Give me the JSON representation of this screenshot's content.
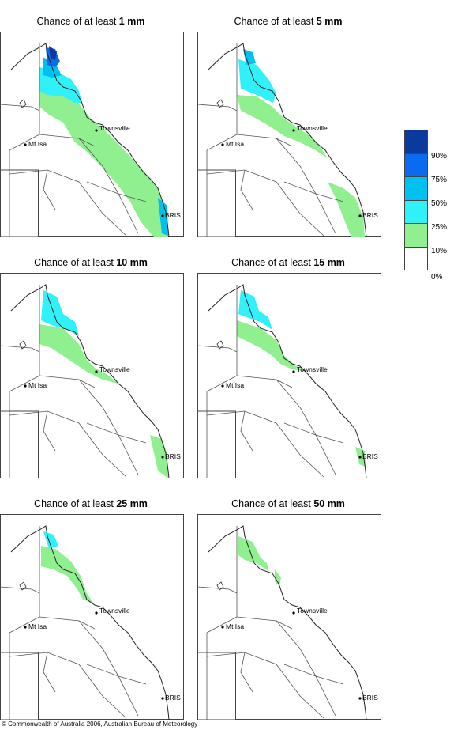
{
  "panels": [
    {
      "prefix": "Chance of at least ",
      "amount": "1 mm"
    },
    {
      "prefix": "Chance of at least ",
      "amount": "5 mm"
    },
    {
      "prefix": "Chance of at least ",
      "amount": "10 mm"
    },
    {
      "prefix": "Chance of at least ",
      "amount": "15 mm"
    },
    {
      "prefix": "Chance of at least ",
      "amount": "25 mm"
    },
    {
      "prefix": "Chance of at least ",
      "amount": "50 mm"
    }
  ],
  "places": {
    "townsville": "Townsville",
    "mtisa": "Mt Isa",
    "bris": "BRIS"
  },
  "legend": {
    "labels": [
      "90%",
      "75%",
      "50%",
      "25%",
      "10%",
      "0%"
    ],
    "colors": [
      "#0a3a9e",
      "#0a6af0",
      "#00c0f0",
      "#30f0f8",
      "#90f090",
      "#ffffff"
    ]
  },
  "credit": "© Commonwealth of Australia 2006, Australian Bureau of Meteorology"
}
